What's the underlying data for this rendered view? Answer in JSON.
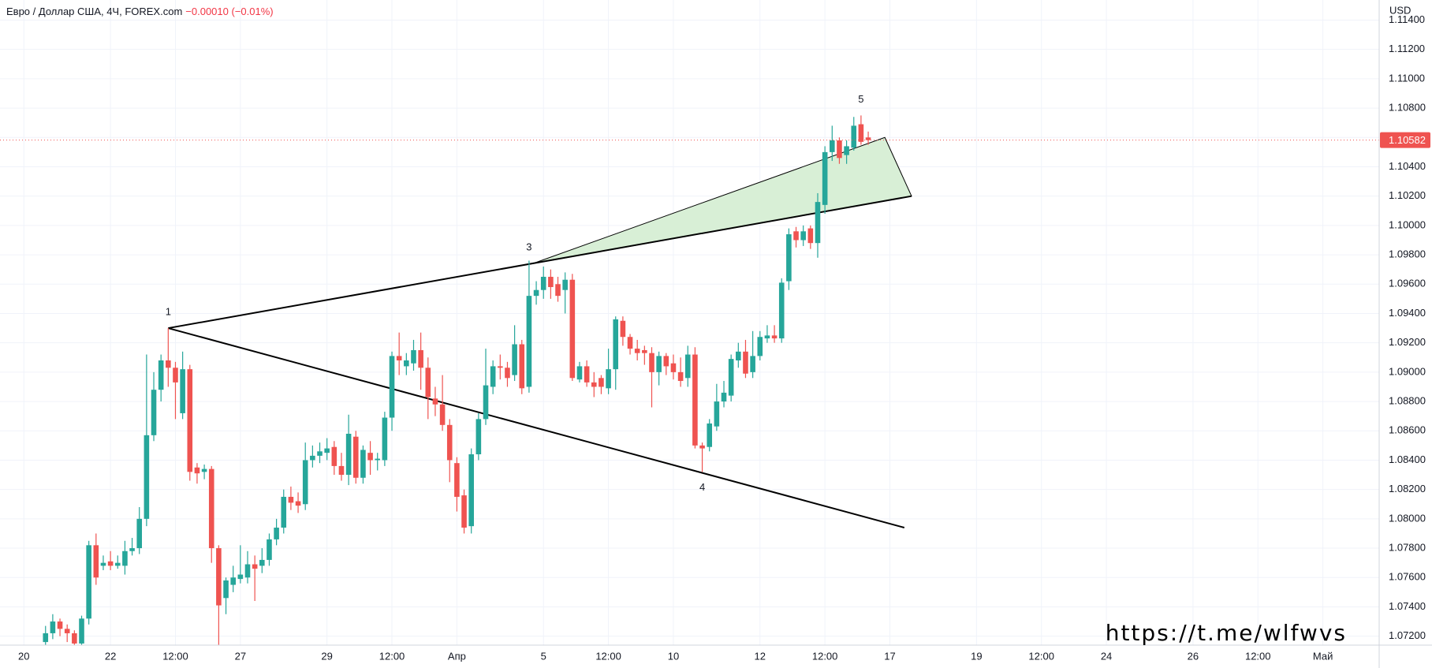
{
  "chart_data": {
    "type": "candlestick",
    "title": "Евро / Доллар США, 4Ч, FOREX.com",
    "subtitle": "−0.00010 (−0.01%)",
    "currency": "USD",
    "watermark": "https://t.me/wlfwvs",
    "up_color": "#26a69a",
    "down_color": "#ef5350",
    "grid": true,
    "x": [
      -9,
      -8,
      -7,
      -6,
      -5,
      -4,
      -3,
      -2,
      -1,
      0,
      1,
      2,
      3,
      4,
      5,
      6,
      7,
      8,
      9,
      10,
      11,
      12,
      13,
      14,
      15,
      16,
      17,
      18,
      19,
      20,
      21,
      22,
      23,
      24,
      25,
      26,
      27,
      28,
      29,
      30,
      31,
      32,
      33,
      34,
      35,
      36,
      37,
      38,
      39,
      40,
      41,
      42,
      43,
      44,
      45,
      46,
      47,
      48,
      49,
      50,
      51,
      52,
      53,
      54,
      55,
      56,
      57,
      58,
      59,
      60,
      61,
      62,
      63,
      64,
      65,
      66,
      67,
      68,
      69,
      70,
      71,
      72,
      73,
      74,
      75,
      76,
      77,
      78,
      79,
      80,
      81,
      82,
      83,
      84,
      85,
      86,
      87,
      88,
      89,
      90,
      91,
      92,
      93,
      94,
      95,
      96,
      97,
      98,
      99,
      100,
      101,
      102,
      103,
      104,
      105
    ],
    "open": [
      1.0716,
      1.0722,
      1.073,
      1.0725,
      1.0722,
      1.0715,
      1.0732,
      1.0782,
      1.0768,
      1.0771,
      1.0768,
      1.0768,
      1.0778,
      1.078,
      1.08,
      1.0857,
      1.0888,
      1.0908,
      1.0903,
      1.0872,
      1.0902,
      1.0835,
      1.0832,
      1.0834,
      1.078,
      1.0746,
      1.0755,
      1.0759,
      1.076,
      1.0769,
      1.0768,
      1.0772,
      1.0786,
      1.0794,
      1.0815,
      1.0812,
      1.081,
      1.084,
      1.0843,
      1.0845,
      1.0849,
      1.0836,
      1.083,
      1.0856,
      1.0828,
      1.0845,
      1.084,
      1.084,
      1.0869,
      1.0911,
      1.0904,
      1.0906,
      1.0915,
      1.0903,
      1.0882,
      1.0878,
      1.0864,
      1.0838,
      1.0816,
      1.0795,
      1.0844,
      1.0868,
      1.089,
      1.0904,
      1.0903,
      1.0898,
      1.0919,
      1.089,
      1.0952,
      1.0956,
      1.0965,
      1.096,
      1.0956,
      1.0963,
      1.0895,
      1.0904,
      1.0893,
      1.0896,
      1.0889,
      1.0902,
      1.0935,
      1.0924,
      1.0916,
      1.0915,
      1.0913,
      1.09,
      1.0911,
      1.0906,
      1.09,
      1.0896,
      1.0912,
      1.085,
      1.0849,
      1.0863,
      1.088,
      1.0884,
      1.0908,
      1.0914,
      1.09,
      1.0911,
      1.0923,
      1.0925,
      1.0923,
      1.0962,
      1.0996,
      1.099,
      1.0998,
      1.0988,
      1.1014,
      1.105,
      1.1058,
      1.1048,
      1.1053,
      1.1069,
      1.106
    ],
    "high": [
      1.0727,
      1.0735,
      1.0732,
      1.0728,
      1.0724,
      1.0734,
      1.0785,
      1.079,
      1.0775,
      1.0778,
      1.0775,
      1.0785,
      1.0787,
      1.0808,
      1.0912,
      1.09,
      1.0912,
      1.093,
      1.0907,
      1.0914,
      1.0905,
      1.0838,
      1.0837,
      1.0836,
      1.0782,
      1.076,
      1.0768,
      1.0782,
      1.0778,
      1.0775,
      1.078,
      1.079,
      1.08,
      1.082,
      1.0822,
      1.0818,
      1.0852,
      1.085,
      1.0852,
      1.0855,
      1.0853,
      1.0845,
      1.0871,
      1.086,
      1.085,
      1.0853,
      1.0845,
      1.0873,
      1.0914,
      1.0927,
      1.0913,
      1.0922,
      1.0927,
      1.091,
      1.089,
      1.0898,
      1.0868,
      1.0842,
      1.082,
      1.0848,
      1.0872,
      1.0916,
      1.0908,
      1.0912,
      1.0907,
      1.0932,
      1.0922,
      1.0976,
      1.0962,
      1.0972,
      1.097,
      1.0965,
      1.0968,
      1.0967,
      1.0907,
      1.0908,
      1.09,
      1.0898,
      1.0916,
      1.0938,
      1.0938,
      1.0926,
      1.0922,
      1.0918,
      1.0917,
      1.0914,
      1.0913,
      1.0912,
      1.091,
      1.0918,
      1.0917,
      1.0852,
      1.0868,
      1.0892,
      1.0894,
      1.0912,
      1.092,
      1.0922,
      1.0928,
      1.0928,
      1.0932,
      1.0932,
      1.0964,
      1.0998,
      1.0999,
      1.1,
      1.1,
      1.1022,
      1.1054,
      1.1068,
      1.106,
      1.1058,
      1.1074,
      1.1075,
      1.1064
    ],
    "low": [
      1.0712,
      1.0718,
      1.072,
      1.0716,
      1.0712,
      1.0712,
      1.0728,
      1.0755,
      1.0765,
      1.0765,
      1.0766,
      1.0762,
      1.0775,
      1.0776,
      1.0795,
      1.0853,
      1.088,
      1.089,
      1.0868,
      1.0868,
      1.0826,
      1.0824,
      1.0827,
      1.077,
      1.0712,
      1.0735,
      1.075,
      1.0756,
      1.0756,
      1.0744,
      1.0763,
      1.0768,
      1.0782,
      1.079,
      1.0806,
      1.0804,
      1.0806,
      1.0835,
      1.0838,
      1.084,
      1.083,
      1.0826,
      1.0823,
      1.0824,
      1.0824,
      1.083,
      1.0833,
      1.0836,
      1.086,
      1.0898,
      1.0898,
      1.0901,
      1.0888,
      1.0868,
      1.087,
      1.086,
      1.0825,
      1.0805,
      1.079,
      1.079,
      1.084,
      1.0864,
      1.0885,
      1.0895,
      1.089,
      1.0894,
      1.0885,
      1.0886,
      1.0946,
      1.095,
      1.095,
      1.0948,
      1.094,
      1.0894,
      1.0893,
      1.089,
      1.0883,
      1.0885,
      1.0885,
      1.0888,
      1.0918,
      1.0912,
      1.0908,
      1.0905,
      1.0876,
      1.0891,
      1.0898,
      1.0895,
      1.089,
      1.089,
      1.0848,
      1.0832,
      1.0846,
      1.086,
      1.0876,
      1.088,
      1.0903,
      1.0896,
      1.0896,
      1.0908,
      1.092,
      1.092,
      1.092,
      1.0956,
      1.0985,
      1.0986,
      1.0984,
      1.0978,
      1.1008,
      1.1044,
      1.1042,
      1.1042,
      1.1051,
      1.1055,
      1.1055
    ],
    "close": [
      1.0722,
      1.073,
      1.0725,
      1.0722,
      1.0715,
      1.0732,
      1.0782,
      1.076,
      1.077,
      1.0768,
      1.077,
      1.0778,
      1.078,
      1.08,
      1.0857,
      1.0888,
      1.0908,
      1.0903,
      1.0893,
      1.0902,
      1.0832,
      1.0831,
      1.0834,
      1.078,
      1.0741,
      1.0758,
      1.076,
      1.0762,
      1.0769,
      1.0766,
      1.0772,
      1.0786,
      1.0794,
      1.0815,
      1.0811,
      1.0809,
      1.084,
      1.0843,
      1.0846,
      1.0848,
      1.0836,
      1.083,
      1.0858,
      1.0828,
      1.0847,
      1.084,
      1.0841,
      1.0869,
      1.0911,
      1.0908,
      1.0908,
      1.0915,
      1.0903,
      1.0883,
      1.0878,
      1.0864,
      1.084,
      1.0815,
      1.0794,
      1.0844,
      1.0868,
      1.0891,
      1.0904,
      1.0903,
      1.0896,
      1.0919,
      1.0889,
      1.0952,
      1.0956,
      1.0965,
      1.0958,
      1.0952,
      1.0963,
      1.0896,
      1.0904,
      1.0893,
      1.089,
      1.089,
      1.0902,
      1.0936,
      1.0924,
      1.0916,
      1.0913,
      1.0913,
      1.09,
      1.0911,
      1.0904,
      1.09,
      1.0894,
      1.0912,
      1.085,
      1.0848,
      1.0865,
      1.088,
      1.0886,
      1.0909,
      1.0914,
      1.0899,
      1.0911,
      1.0924,
      1.0925,
      1.0923,
      1.0961,
      1.0994,
      1.099,
      1.0996,
      1.0988,
      1.1016,
      1.105,
      1.1058,
      1.1046,
      1.1054,
      1.1068,
      1.1057,
      1.10582
    ],
    "last_price": 1.10582,
    "xlim": [
      -15.31,
      175.8
    ],
    "ylim": [
      1.07139,
      1.11537
    ],
    "xticks": [
      {
        "value": -12,
        "label": "20"
      },
      {
        "value": 0,
        "label": "22"
      },
      {
        "value": 9,
        "label": "12:00"
      },
      {
        "value": 18,
        "label": "27"
      },
      {
        "value": 30,
        "label": "29"
      },
      {
        "value": 39,
        "label": "12:00"
      },
      {
        "value": 48,
        "label": "Апр"
      },
      {
        "value": 60,
        "label": "5"
      },
      {
        "value": 69,
        "label": "12:00"
      },
      {
        "value": 78,
        "label": "10"
      },
      {
        "value": 90,
        "label": "12"
      },
      {
        "value": 99,
        "label": "12:00"
      },
      {
        "value": 108,
        "label": "17"
      },
      {
        "value": 120,
        "label": "19"
      },
      {
        "value": 129,
        "label": "12:00"
      },
      {
        "value": 138,
        "label": "24"
      },
      {
        "value": 150,
        "label": "26"
      },
      {
        "value": 159,
        "label": "12:00"
      },
      {
        "value": 168,
        "label": "Май"
      }
    ],
    "yticks": [
      {
        "value": 1.072,
        "label": "1.07200"
      },
      {
        "value": 1.074,
        "label": "1.07400"
      },
      {
        "value": 1.076,
        "label": "1.07600"
      },
      {
        "value": 1.078,
        "label": "1.07800"
      },
      {
        "value": 1.08,
        "label": "1.08000"
      },
      {
        "value": 1.082,
        "label": "1.08200"
      },
      {
        "value": 1.084,
        "label": "1.08400"
      },
      {
        "value": 1.086,
        "label": "1.08600"
      },
      {
        "value": 1.088,
        "label": "1.08800"
      },
      {
        "value": 1.09,
        "label": "1.09000"
      },
      {
        "value": 1.092,
        "label": "1.09200"
      },
      {
        "value": 1.094,
        "label": "1.09400"
      },
      {
        "value": 1.096,
        "label": "1.09600"
      },
      {
        "value": 1.098,
        "label": "1.09800"
      },
      {
        "value": 1.1,
        "label": "1.10000"
      },
      {
        "value": 1.102,
        "label": "1.10200"
      },
      {
        "value": 1.104,
        "label": "1.10400"
      },
      {
        "value": 1.106,
        "label": "1.10600"
      },
      {
        "value": 1.108,
        "label": "1.10800"
      },
      {
        "value": 1.11,
        "label": "1.11000"
      },
      {
        "value": 1.112,
        "label": "1.11200"
      },
      {
        "value": 1.114,
        "label": "1.11400"
      }
    ],
    "pattern_fill": "#d8efd6",
    "triangle": {
      "x": [
        58.5,
        107.3,
        111
      ],
      "y": [
        1.0974,
        1.106,
        1.102
      ]
    },
    "lines": [
      {
        "x": [
          8,
          111
        ],
        "y": [
          1.093,
          1.102
        ]
      },
      {
        "x": [
          8,
          110
        ],
        "y": [
          1.093,
          1.0794
        ]
      }
    ],
    "annotations": [
      {
        "text": "1",
        "x": 8,
        "y": 1.093,
        "position": "above"
      },
      {
        "text": "3",
        "x": 58,
        "y": 1.0974,
        "position": "above"
      },
      {
        "text": "4",
        "x": 82,
        "y": 1.0832,
        "position": "below"
      },
      {
        "text": "5",
        "x": 104,
        "y": 1.1075,
        "position": "above"
      }
    ]
  }
}
